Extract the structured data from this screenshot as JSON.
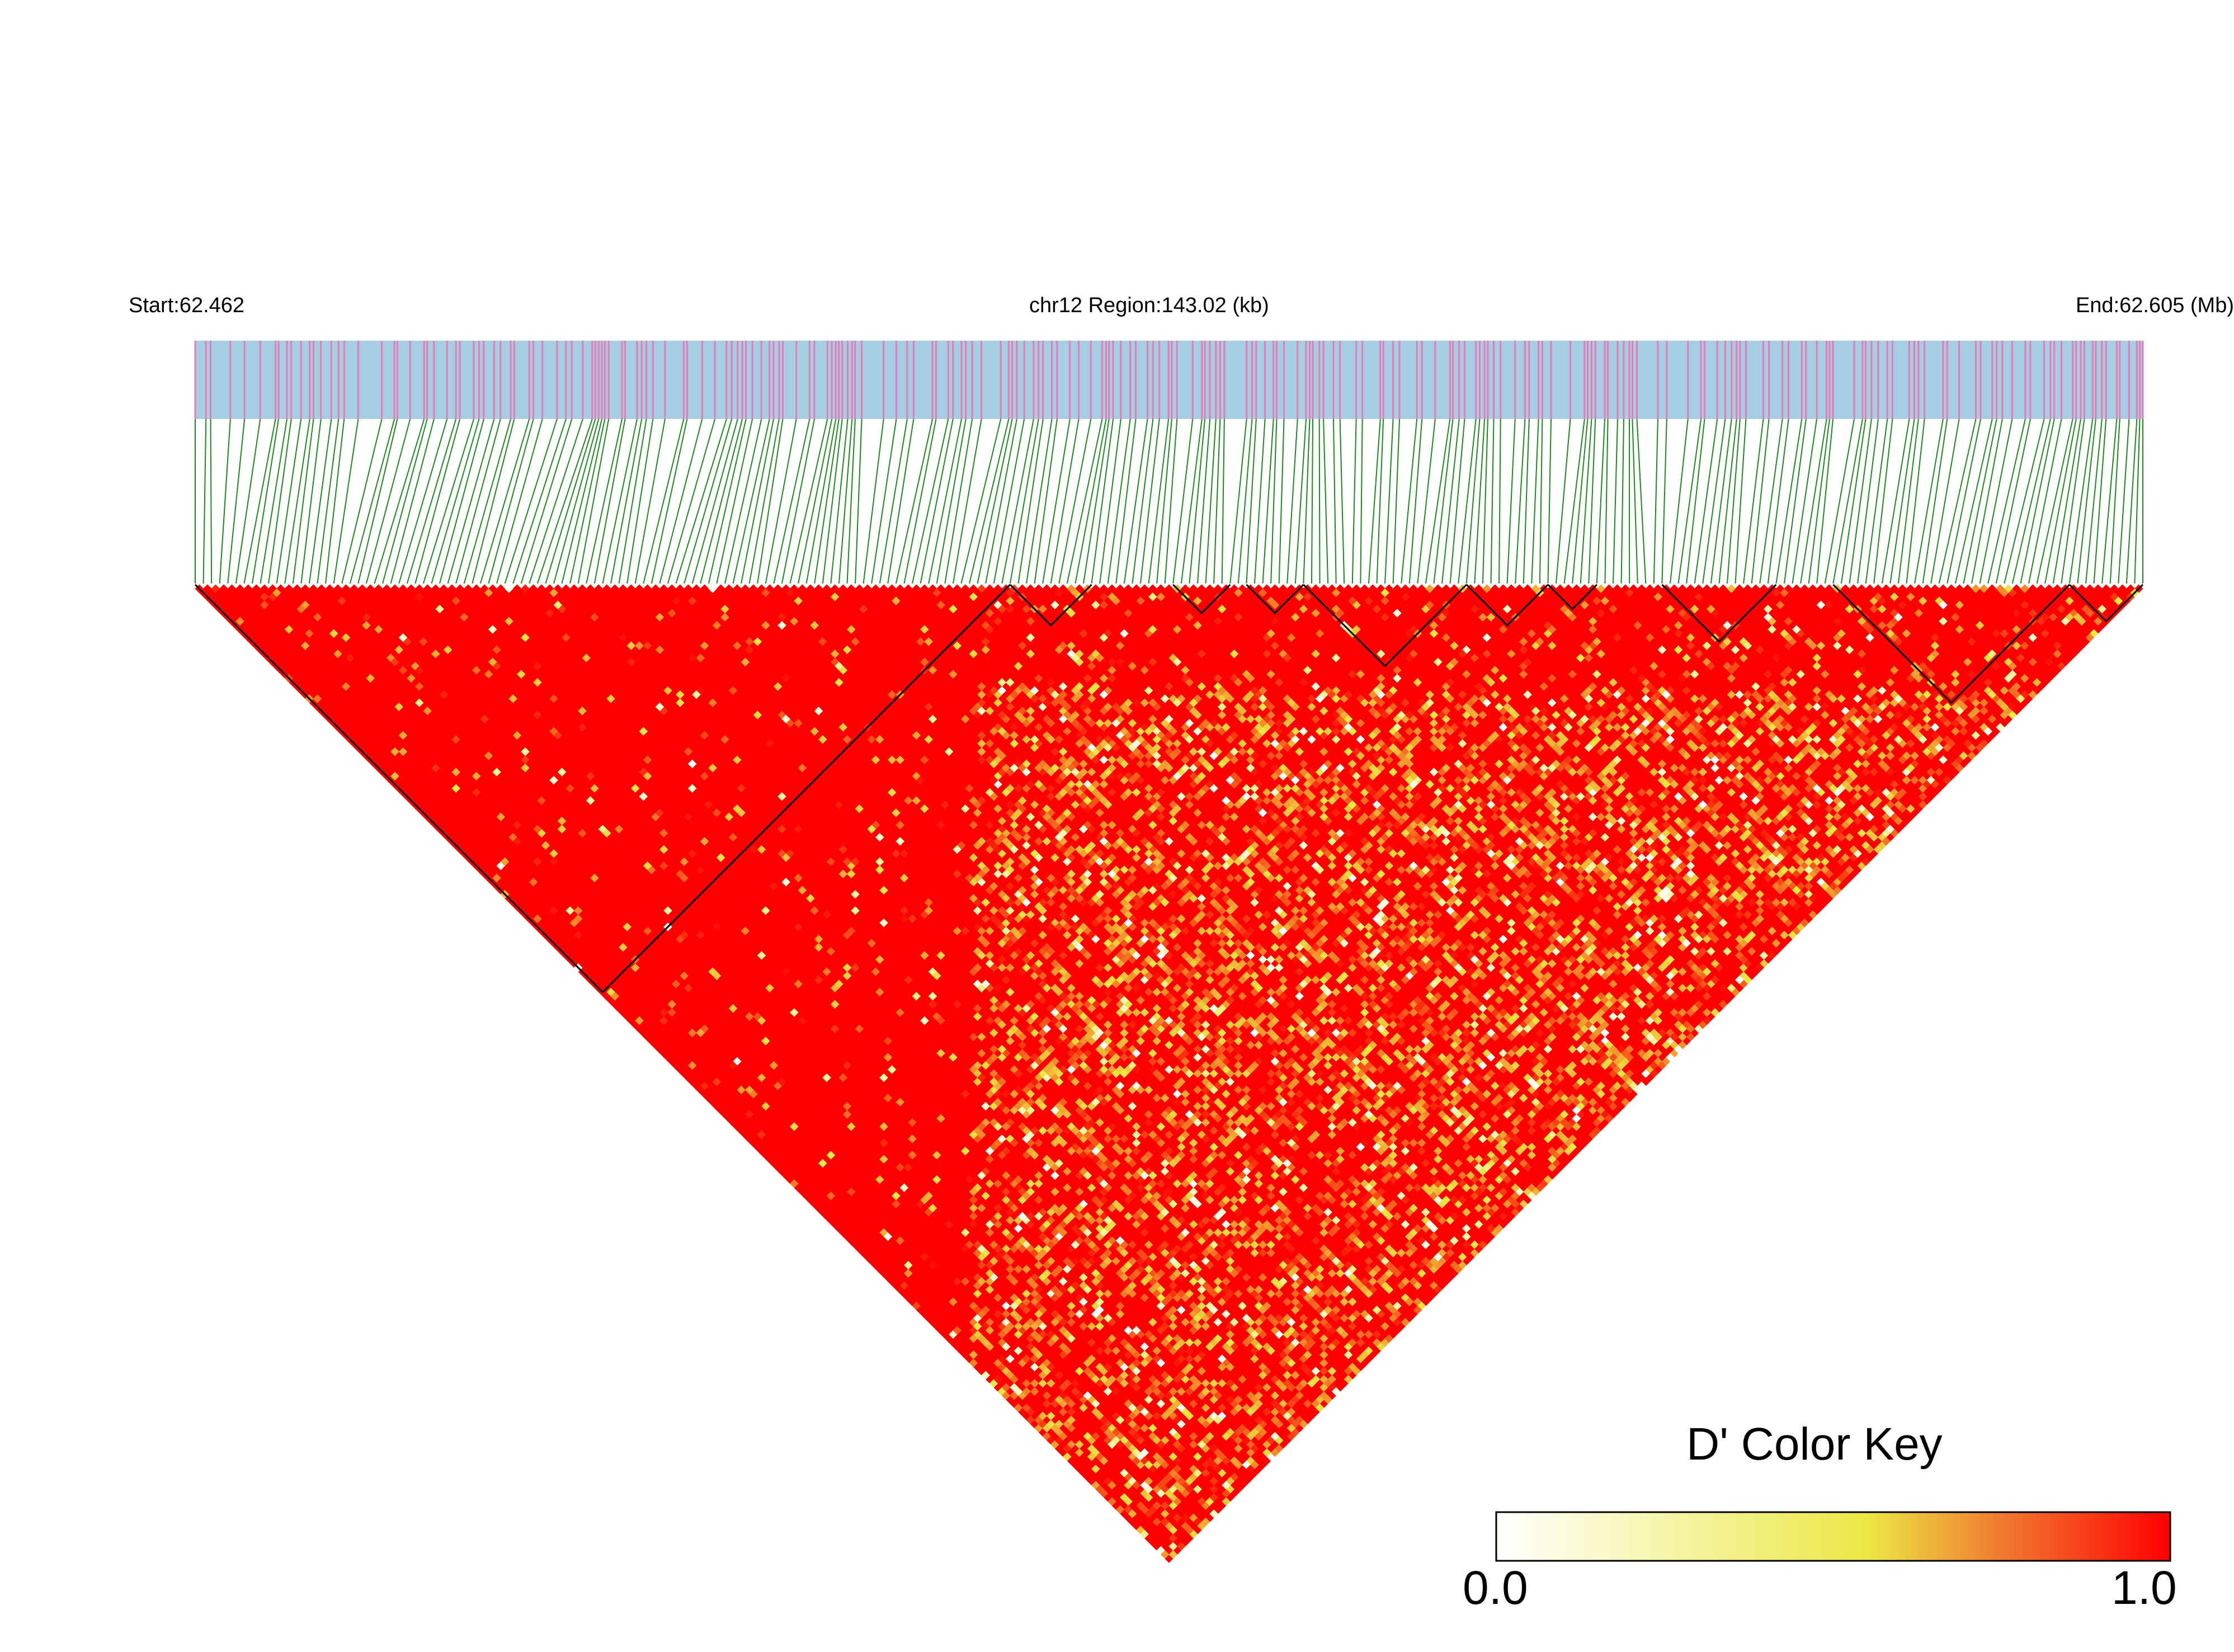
{
  "chart_data": {
    "type": "heatmap",
    "chromosome": "chr12",
    "header": {
      "start_label": "Start:62.462",
      "region_label": "chr12 Region:143.02 (kb)",
      "end_label": "End:62.605 (Mb)"
    },
    "region_start_mb": 62.462,
    "region_end_mb": 62.605,
    "region_length_kb": 143.02,
    "n_snps": 240,
    "statistic": "D'",
    "value_range": [
      0,
      1
    ],
    "dominant_value": 1.0,
    "ld_blocks": [
      {
        "first_snp": 0,
        "last_snp": 100
      },
      {
        "first_snp": 100,
        "last_snp": 110
      },
      {
        "first_snp": 120,
        "last_snp": 127
      },
      {
        "first_snp": 129,
        "last_snp": 136
      },
      {
        "first_snp": 136,
        "last_snp": 156
      },
      {
        "first_snp": 156,
        "last_snp": 166
      },
      {
        "first_snp": 166,
        "last_snp": 172
      },
      {
        "first_snp": 180,
        "last_snp": 194
      },
      {
        "first_snp": 201,
        "last_snp": 230
      },
      {
        "first_snp": 230,
        "last_snp": 239
      }
    ],
    "colors": {
      "snp_track_background": "#a6cee3",
      "snp_marker": "#e87ab8",
      "connector": "#1a8a1a",
      "block_outline": "#000000",
      "low": "#ffffff",
      "mid": "#ebe844",
      "high": "#ff0000"
    },
    "legend": {
      "title": "D' Color Key",
      "min_label": "0.0",
      "max_label": "1.0",
      "placement": "bottom-right"
    }
  }
}
